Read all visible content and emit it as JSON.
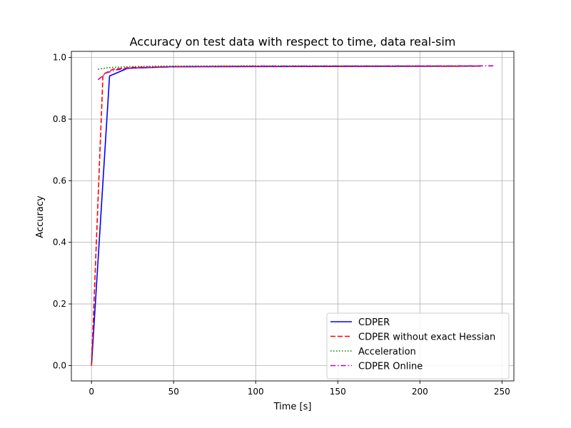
{
  "chart_data": {
    "type": "line",
    "title": "Accuracy on test data with respect to time, data real-sim",
    "xlabel": "Time [s]",
    "ylabel": "Accuracy",
    "xlim": [
      -12.25,
      257.25
    ],
    "ylim": [
      -0.05,
      1.02
    ],
    "xticks": [
      0,
      50,
      100,
      150,
      200,
      250
    ],
    "yticks": [
      0.0,
      0.2,
      0.4,
      0.6,
      0.8,
      1.0
    ],
    "xtick_labels": [
      "0",
      "50",
      "100",
      "150",
      "200",
      "250"
    ],
    "ytick_labels": [
      "0.0",
      "0.2",
      "0.4",
      "0.6",
      "0.8",
      "1.0"
    ],
    "grid": true,
    "legend_position": "lower right",
    "series": [
      {
        "name": "CDPER",
        "color": "#0000ff",
        "dash": "solid",
        "x": [
          0,
          11,
          22,
          50,
          237
        ],
        "y": [
          0.0,
          0.94,
          0.965,
          0.97,
          0.972
        ]
      },
      {
        "name": "CDPER without exact Hessian",
        "color": "#ff0000",
        "dash": "dashed",
        "x": [
          0,
          7,
          13,
          25,
          60,
          237
        ],
        "y": [
          0.0,
          0.945,
          0.962,
          0.968,
          0.971,
          0.972
        ]
      },
      {
        "name": "Acceleration",
        "color": "#008000",
        "dash": "dotted",
        "x": [
          4,
          10,
          20,
          40,
          100,
          237
        ],
        "y": [
          0.962,
          0.967,
          0.97,
          0.972,
          0.973,
          0.973
        ]
      },
      {
        "name": "CDPER Online",
        "color": "#bf00bf",
        "dash": "dashdot",
        "x": [
          4,
          9,
          15,
          25,
          50,
          100,
          246
        ],
        "y": [
          0.928,
          0.95,
          0.96,
          0.966,
          0.97,
          0.972,
          0.973
        ]
      }
    ]
  }
}
